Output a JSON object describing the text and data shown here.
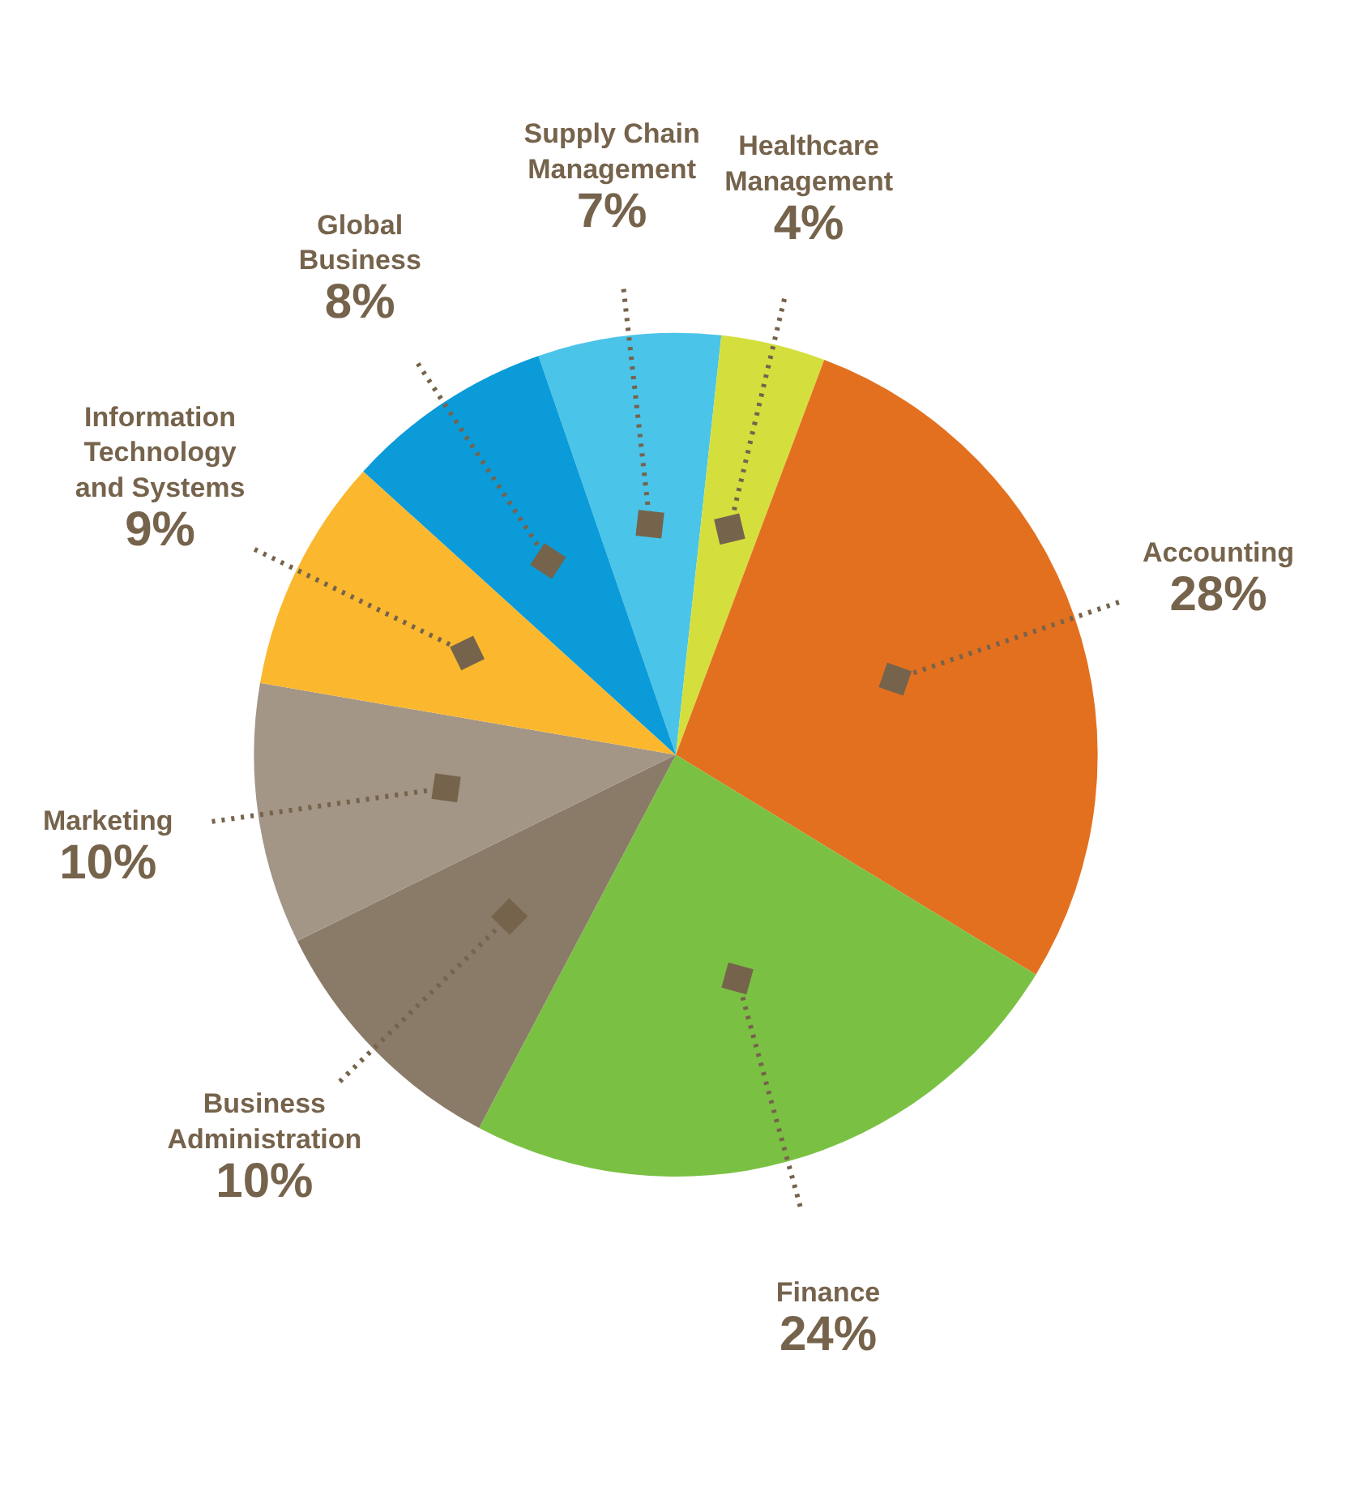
{
  "chart_data": {
    "type": "pie",
    "categories": [
      "Supply Chain Management",
      "Healthcare Management",
      "Accounting",
      "Finance",
      "Business Administration",
      "Marketing",
      "Information Technology and Systems",
      "Global Business"
    ],
    "values": [
      7,
      4,
      28,
      24,
      10,
      10,
      9,
      8
    ],
    "value_labels": [
      "7%",
      "4%",
      "28%",
      "24%",
      "10%",
      "10%",
      "9%",
      "8%"
    ],
    "colors": [
      "#4ac4e8",
      "#d4df3e",
      "#e3701f",
      "#7ac143",
      "#8a7a68",
      "#a39686",
      "#fbb82e",
      "#0a9bd8"
    ]
  }
}
